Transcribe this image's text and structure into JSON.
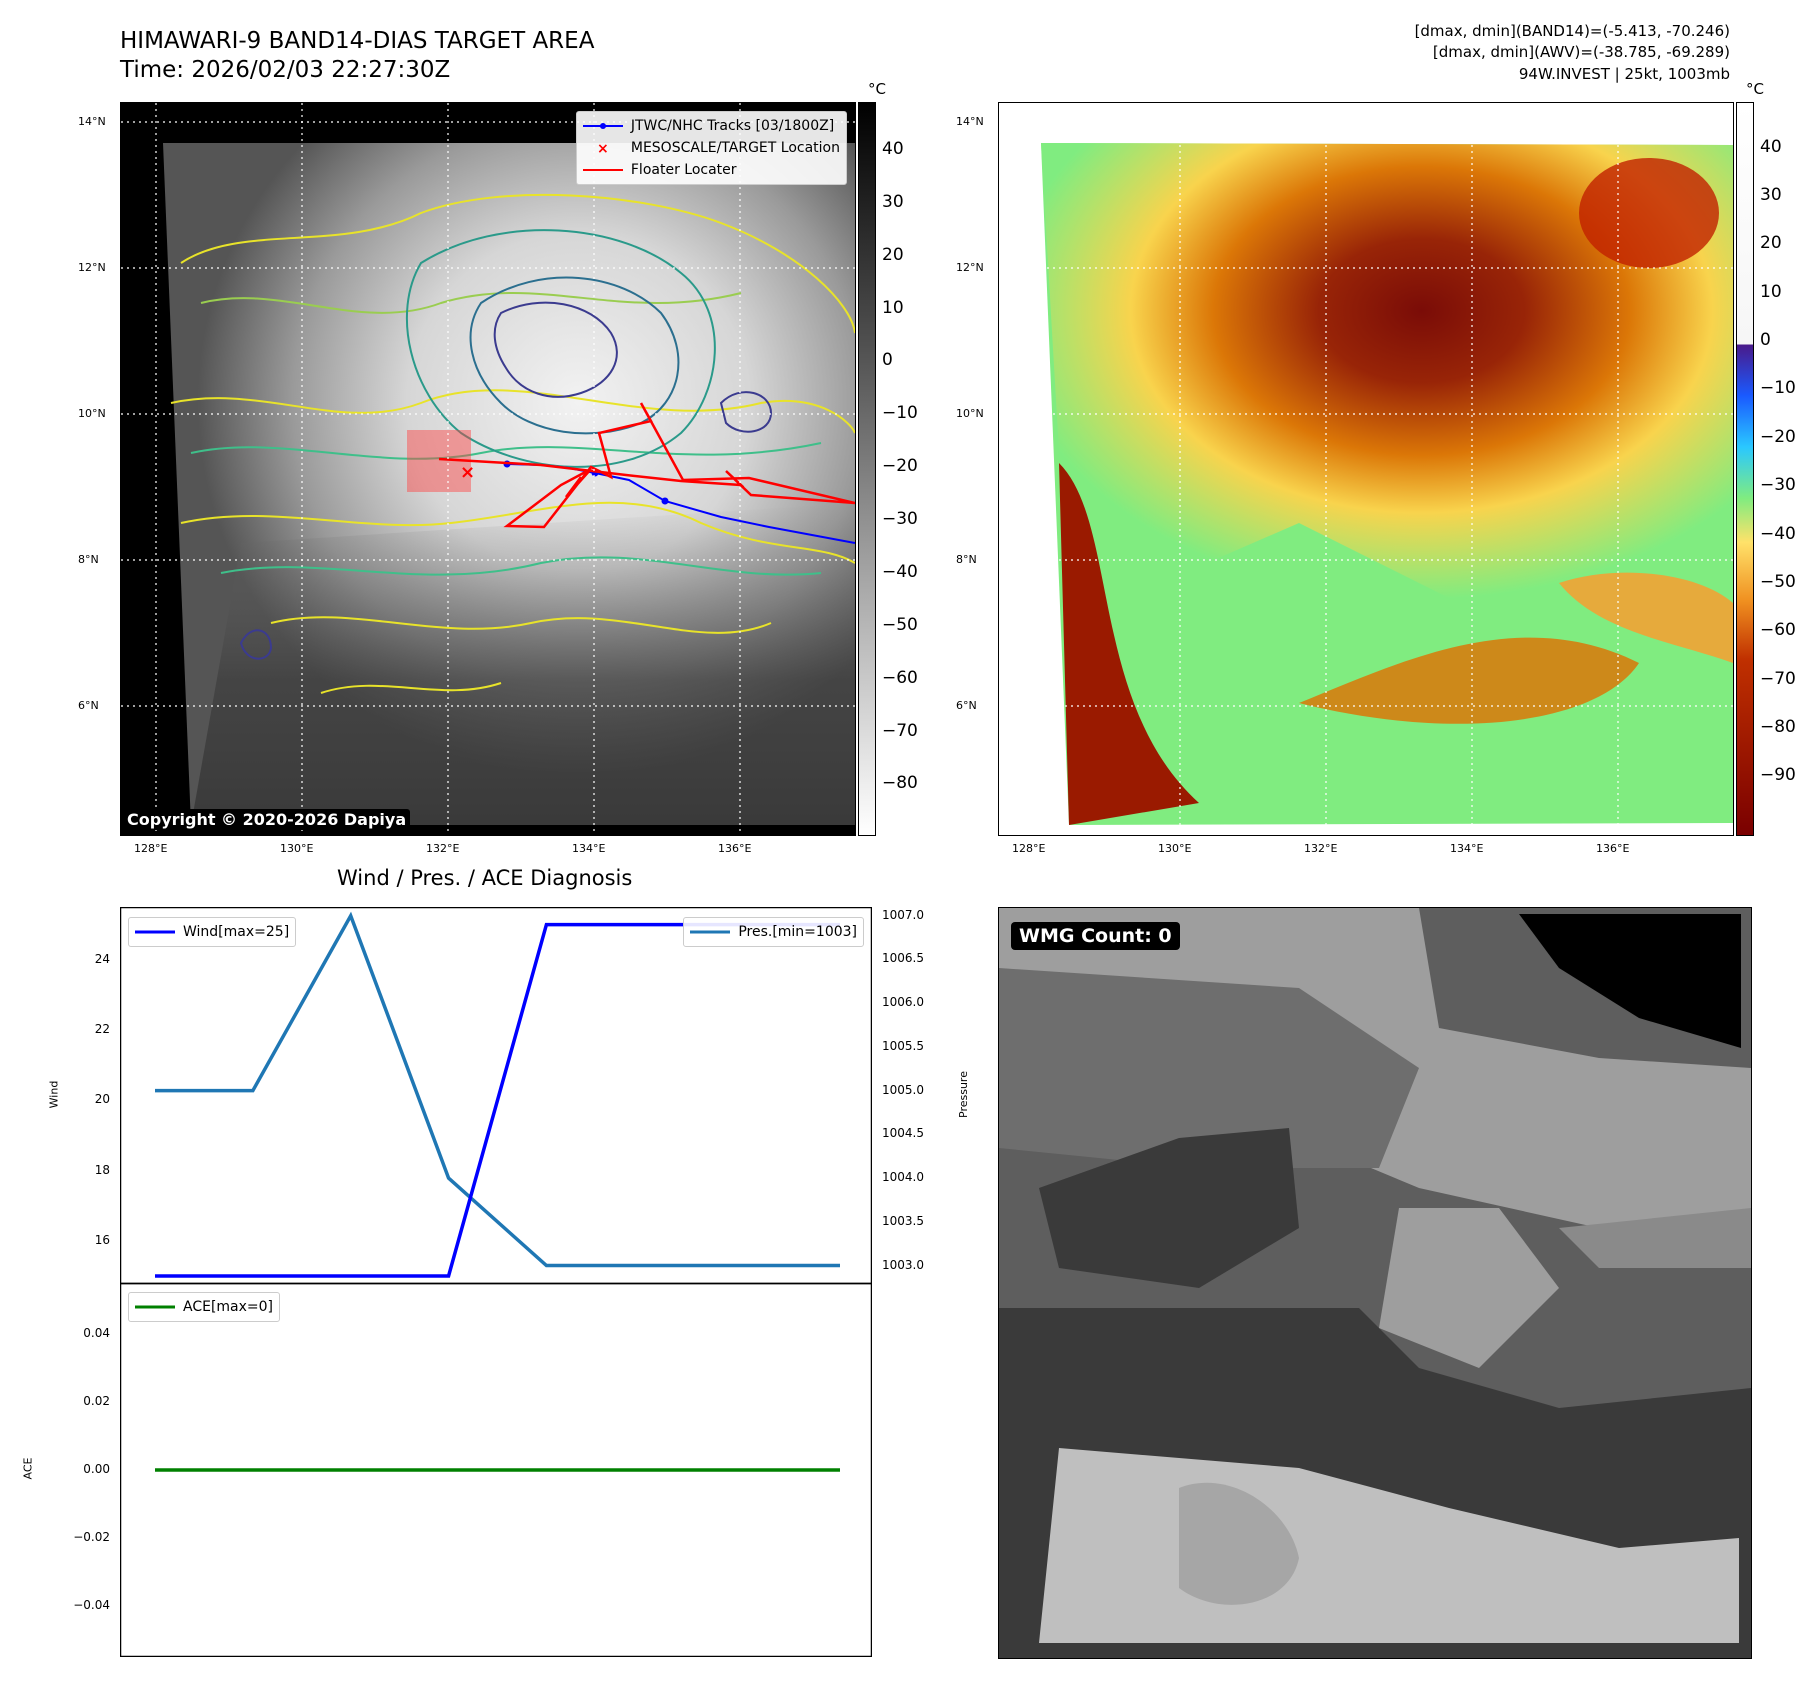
{
  "header": {
    "title_line1": "HIMAWARI-9 BAND14-DIAS TARGET AREA",
    "title_line2": "Time: 2026/02/03 22:27:30Z",
    "info_line1": "[dmax, dmin](BAND14)=(-5.413, -70.246)",
    "info_line2": "[dmax, dmin](AWV)=(-38.785, -69.289)",
    "info_line3": "94W.INVEST | 25kt, 1003mb"
  },
  "maps": {
    "lon_labels": [
      "128°E",
      "130°E",
      "132°E",
      "134°E",
      "136°E"
    ],
    "lat_labels": [
      "14°N",
      "12°N",
      "10°N",
      "8°N",
      "6°N"
    ],
    "copyright": "Copyright © 2020-2026 Dapiya",
    "legend": {
      "tracks": "JTWC/NHC Tracks [03/1800Z]",
      "target": "MESOSCALE/TARGET Location",
      "floater": "Floater Locater"
    },
    "colorbar_unit": "°C",
    "colorbar1_ticks": [
      "40",
      "30",
      "20",
      "10",
      "0",
      "−10",
      "−20",
      "−30",
      "−40",
      "−50",
      "−60",
      "−70",
      "−80"
    ],
    "colorbar2_ticks": [
      "40",
      "30",
      "20",
      "10",
      "0",
      "−10",
      "−20",
      "−30",
      "−40",
      "−50",
      "−60",
      "−70",
      "−80",
      "−90"
    ],
    "colors": {
      "track": "#0000ff",
      "target": "#ff0000",
      "floater": "#ff0000"
    }
  },
  "wmg": {
    "label": "WMG Count: 0"
  },
  "chart_data": [
    {
      "type": "line",
      "title": "Wind / Pres. / ACE Diagnosis",
      "x": [
        0,
        1,
        2,
        3,
        4,
        5,
        6,
        7
      ],
      "series": [
        {
          "name": "Wind[max=25]",
          "axis": "left",
          "color": "#0000ff",
          "values": [
            15,
            15,
            15,
            15,
            25,
            25,
            25,
            25
          ]
        },
        {
          "name": "Pres.[min=1003]",
          "axis": "right",
          "color": "#1f77b4",
          "values": [
            1005,
            1005,
            1007,
            1004,
            1003,
            1003,
            1003,
            1003
          ]
        }
      ],
      "ylabel": "Wind",
      "ylim": [
        14.8,
        25.5
      ],
      "yticks": [
        "24",
        "22",
        "20",
        "18",
        "16"
      ],
      "y2label": "Pressure",
      "y2lim": [
        1002.8,
        1007.1
      ],
      "y2ticks": [
        "1007.0",
        "1006.5",
        "1006.0",
        "1005.5",
        "1005.0",
        "1004.5",
        "1004.0",
        "1003.5",
        "1003.0"
      ]
    },
    {
      "type": "line",
      "x": [
        0,
        1,
        2,
        3,
        4,
        5,
        6,
        7
      ],
      "series": [
        {
          "name": "ACE[max=0]",
          "color": "#008000",
          "values": [
            0,
            0,
            0,
            0,
            0,
            0,
            0,
            0
          ]
        }
      ],
      "ylabel": "ACE",
      "ylim": [
        -0.055,
        0.055
      ],
      "yticks": [
        "0.04",
        "0.02",
        "0.00",
        "−0.02",
        "−0.04"
      ]
    }
  ]
}
